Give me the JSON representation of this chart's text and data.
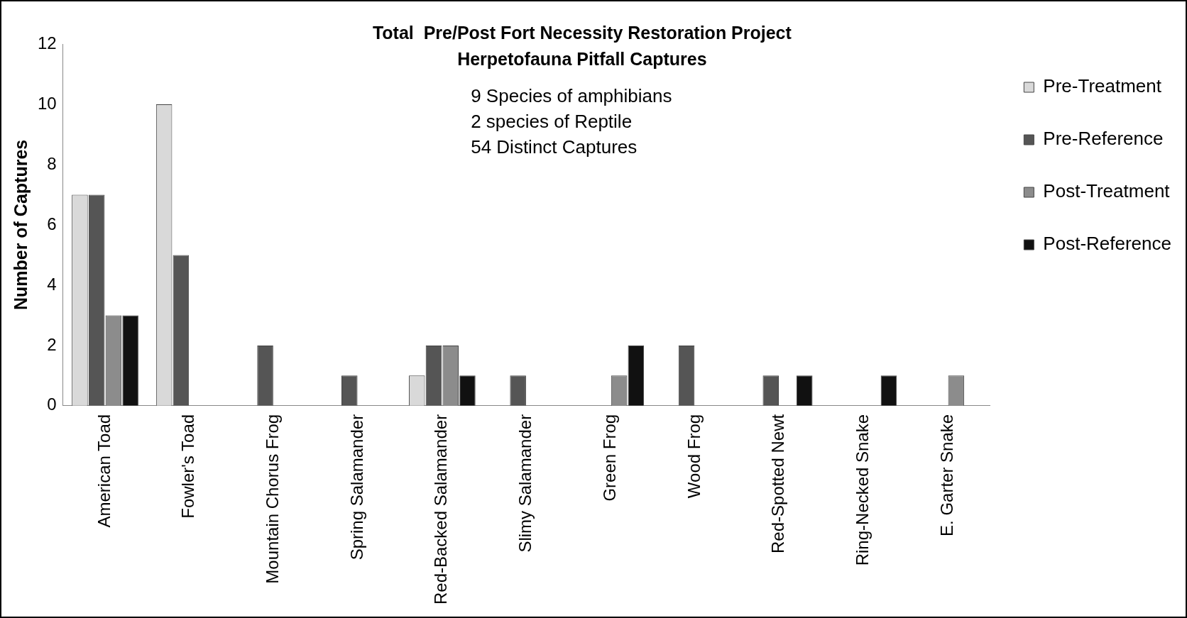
{
  "chart_data": {
    "type": "bar",
    "title": "Total  Pre/Post Fort Necessity Restoration Project",
    "subtitle": "Herpetofauna Pitfall Captures",
    "ylabel": "Number of Captures",
    "categories": [
      "American Toad",
      "Fowler's Toad",
      "Mountain Chorus Frog",
      "Spring Salamander",
      "Red-Backed Salamander",
      "Slimy Salamander",
      "Green Frog",
      "Wood Frog",
      "Red-Spotted Newt",
      "Ring-Necked Snake",
      "E. Garter Snake"
    ],
    "series": [
      {
        "name": "Pre-Treatment",
        "color": "#d9d9d9",
        "values": [
          7,
          10,
          0,
          0,
          1,
          0,
          0,
          0,
          0,
          0,
          0
        ]
      },
      {
        "name": "Pre-Reference",
        "color": "#555555",
        "values": [
          7,
          5,
          2,
          1,
          2,
          1,
          0,
          2,
          1,
          0,
          0
        ]
      },
      {
        "name": "Post-Treatment",
        "color": "#8c8c8c",
        "values": [
          3,
          0,
          0,
          0,
          2,
          0,
          1,
          0,
          0,
          0,
          1
        ]
      },
      {
        "name": "Post-Reference",
        "color": "#111111",
        "values": [
          3,
          0,
          0,
          0,
          1,
          0,
          2,
          0,
          1,
          1,
          0
        ]
      }
    ],
    "annotations": [
      "9 Species of amphibians",
      "2 species of Reptile",
      "54 Distinct Captures"
    ],
    "ylim": [
      0,
      12
    ],
    "yticks": [
      0,
      2,
      4,
      6,
      8,
      10,
      12
    ],
    "grid": false,
    "legend": "right"
  }
}
